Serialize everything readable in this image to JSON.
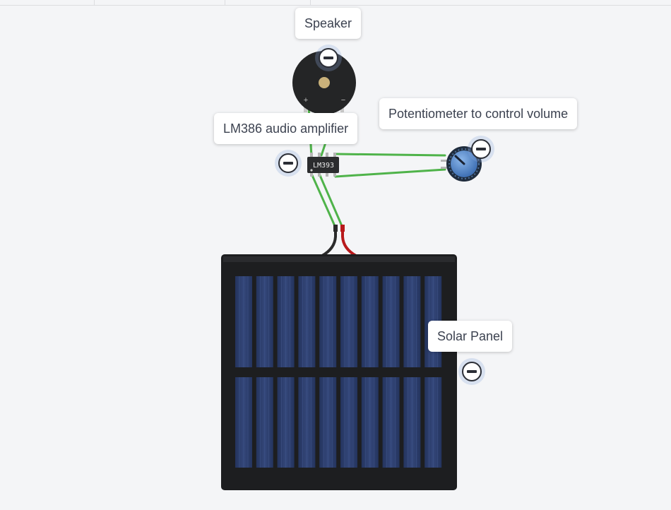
{
  "notes": {
    "speaker": "Speaker",
    "amplifier": "LM386 audio amplifier",
    "potentiometer": "Potentiometer to control volume",
    "solar": "Solar Panel"
  },
  "components": {
    "chip_label": "LM393",
    "speaker_plus": "+",
    "speaker_minus": "−"
  },
  "icons": {
    "collapse": "minus-circle-icon"
  },
  "colors": {
    "canvas_bg": "#f4f5f7",
    "wire_green": "#4fb34a",
    "wire_red": "#b8191b",
    "wire_black": "#2a2a2a",
    "panel_frame": "#1d1e20",
    "cell_blue": "#2b3c6b",
    "knob_blue": "#5b8fd0"
  }
}
